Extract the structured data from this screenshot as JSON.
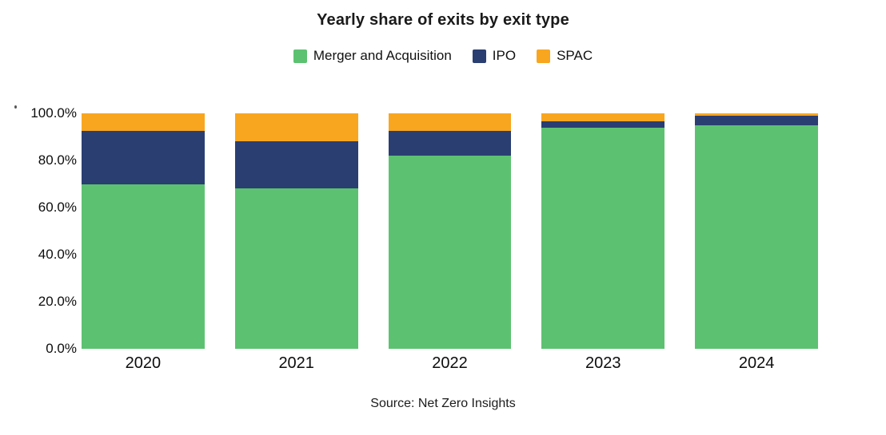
{
  "title": "Yearly share of exits by exit type",
  "source": "Source: Net Zero Insights",
  "colors": {
    "merger_and_acquisition": "#5CC271",
    "ipo": "#2A3E72",
    "spac": "#F8A61F",
    "text": "#1a1a1a"
  },
  "chart_data": {
    "type": "bar",
    "stacked": true,
    "title": "Yearly share of exits by exit type",
    "xlabel": "",
    "ylabel": "",
    "categories": [
      "2020",
      "2021",
      "2022",
      "2023",
      "2024"
    ],
    "series": [
      {
        "name": "Merger and Acquisition",
        "color": "#5CC271",
        "values": [
          70,
          68,
          82,
          94,
          95
        ]
      },
      {
        "name": "IPO",
        "color": "#2A3E72",
        "values": [
          22.5,
          20,
          10.5,
          2.5,
          4
        ]
      },
      {
        "name": "SPAC",
        "color": "#F8A61F",
        "values": [
          7.5,
          12,
          7.5,
          3.5,
          1
        ]
      }
    ],
    "yticks_labels": [
      "0.0%",
      "20.0%",
      "40.0%",
      "60.0%",
      "80.0%",
      "100.0%"
    ],
    "yticks_values": [
      0,
      20,
      40,
      60,
      80,
      100
    ],
    "ylim": [
      0,
      100
    ],
    "grid": false,
    "legend_position": "top",
    "legend_entries": [
      "Merger and Acquisition",
      "IPO",
      "SPAC"
    ]
  }
}
